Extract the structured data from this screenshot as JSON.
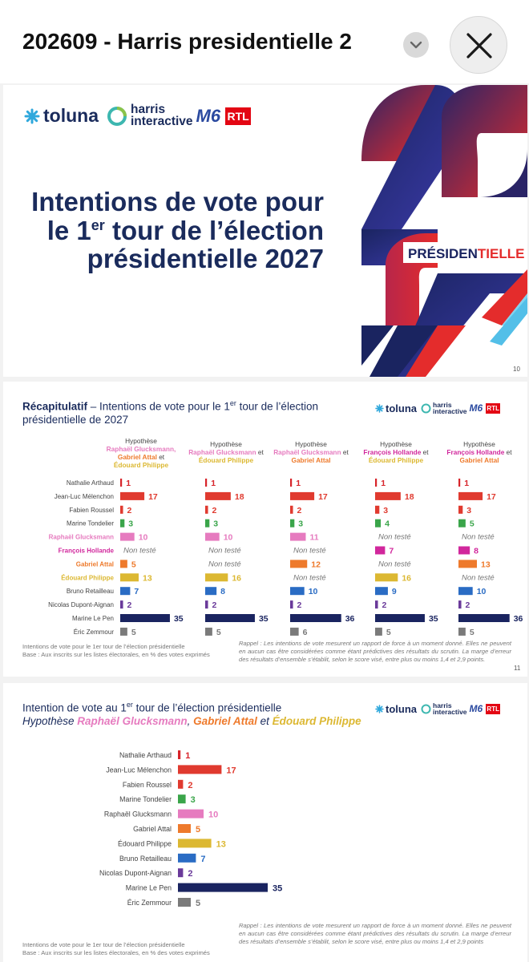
{
  "header": {
    "doc_title": "202609 - Harris presidentielle 2"
  },
  "brand": {
    "toluna": "toluna",
    "harris_1": "harris",
    "harris_2": "interactive",
    "m6": "M6",
    "rtl": "RTL"
  },
  "slide1": {
    "title_line1": "Intentions de vote pour",
    "title_l2_a": "le 1",
    "title_l2_sup": "er",
    "title_l2_b": " tour de l’élection",
    "title_line3": "présidentielle 2027",
    "deco_label_1": "PRÉSIDEN",
    "deco_label_2": "TIELLE",
    "page": "10"
  },
  "slide2": {
    "title_bold": "Récapitulatif",
    "title_a": " – Intentions de vote pour le 1",
    "title_sup": "er",
    "title_b": " tour de l’élection présidentielle de 2027",
    "footnote_1": "Intentions de vote pour le 1er tour de l’élection présidentielle",
    "footnote_2": "Base : Aux inscrits sur les listes électorales, en % des votes exprimés",
    "rappel": "Rappel : Les intentions de vote mesurent un rapport de force à un moment donné. Elles ne peuvent en aucun cas être considérées comme étant prédictives des résultats du scrutin. La marge d’erreur des résultats d’ensemble s’établit, selon le score visé, entre plus ou moins 1,4 et 2,9 points.",
    "page": "11"
  },
  "slide3": {
    "title_a": "Intention de vote au 1",
    "title_sup": "er",
    "title_b": " tour de l’élection présidentielle",
    "hyp_word": "Hypothèse ",
    "hyp_n1": "Raphaël Glucksmann",
    "hyp_sep": ", ",
    "hyp_n2": "Gabriel Attal",
    "hyp_et": " et ",
    "hyp_n3": "Édouard Philippe",
    "footnote_1": "Intentions de vote pour le 1er tour de l’élection présidentielle",
    "footnote_2": "Base : Aux inscrits sur les listes électorales, en % des votes exprimés",
    "rappel": "Rappel : Les intentions de vote mesurent un rapport de force à un moment donné. Elles ne peuvent en aucun cas être considérées comme étant prédictives des résultats du scrutin. La marge d’erreur des résultats d’ensemble s’établit, selon le score visé, entre plus ou moins 1,4 et 2,9 points"
  },
  "chart_data": [
    {
      "type": "bar",
      "orientation": "horizontal",
      "title": "Récapitulatif – Intentions de vote pour le 1er tour de l’élection présidentielle de 2027",
      "categories": [
        "Nathalie Arthaud",
        "Jean-Luc Mélenchon",
        "Fabien Roussel",
        "Marine Tondelier",
        "Raphaël Glucksmann",
        "François Hollande",
        "Gabriel Attal",
        "Édouard Philippe",
        "Bruno Retailleau",
        "Nicolas Dupont-Aignan",
        "Marine Le Pen",
        "Éric Zemmour"
      ],
      "category_colors": [
        "#d7242a",
        "#e03a2f",
        "#e03a2f",
        "#3aa54a",
        "#e67bbf",
        "#d1279c",
        "#ee7a2c",
        "#dcb832",
        "#2a6cc4",
        "#6a3a9a",
        "#1a2460",
        "#7a7a7a"
      ],
      "label_colors": [
        "#444444",
        "#444444",
        "#444444",
        "#444444",
        "#e67bbf",
        "#d1279c",
        "#ee7a2c",
        "#dcb832",
        "#444444",
        "#444444",
        "#444444",
        "#444444"
      ],
      "not_tested_label": "Non testé",
      "series": [
        {
          "hyp_word": "Hypothèse",
          "names": [
            {
              "text": "Raphaël Glucksmann,",
              "color": "#e67bbf"
            },
            {
              "text": "Gabriel Attal",
              "color": "#ee7a2c"
            },
            {
              "text": " et",
              "color": "#444444"
            },
            {
              "text": "Édouard Philippe",
              "color": "#dcb832"
            }
          ],
          "values": [
            1,
            17,
            2,
            3,
            10,
            null,
            5,
            13,
            7,
            2,
            35,
            5
          ]
        },
        {
          "hyp_word": "Hypothèse",
          "names": [
            {
              "text": "Raphaël Glucksmann",
              "color": "#e67bbf"
            },
            {
              "text": " et",
              "color": "#444444"
            },
            {
              "text": "Édouard Philippe",
              "color": "#dcb832"
            }
          ],
          "values": [
            1,
            18,
            2,
            3,
            10,
            null,
            null,
            16,
            8,
            2,
            35,
            5
          ]
        },
        {
          "hyp_word": "Hypothèse",
          "names": [
            {
              "text": "Raphaël Glucksmann",
              "color": "#e67bbf"
            },
            {
              "text": " et",
              "color": "#444444"
            },
            {
              "text": "Gabriel Attal",
              "color": "#ee7a2c"
            }
          ],
          "values": [
            1,
            17,
            2,
            3,
            11,
            null,
            12,
            null,
            10,
            2,
            36,
            6
          ]
        },
        {
          "hyp_word": "Hypothèse",
          "names": [
            {
              "text": "François Hollande",
              "color": "#d1279c"
            },
            {
              "text": " et",
              "color": "#444444"
            },
            {
              "text": "Édouard Philippe",
              "color": "#dcb832"
            }
          ],
          "values": [
            1,
            18,
            3,
            4,
            null,
            7,
            null,
            16,
            9,
            2,
            35,
            5
          ]
        },
        {
          "hyp_word": "Hypothèse",
          "names": [
            {
              "text": "François Hollande",
              "color": "#d1279c"
            },
            {
              "text": " et",
              "color": "#444444"
            },
            {
              "text": "Gabriel Attal",
              "color": "#ee7a2c"
            }
          ],
          "values": [
            1,
            17,
            3,
            5,
            null,
            8,
            13,
            null,
            10,
            2,
            36,
            5
          ]
        }
      ]
    },
    {
      "type": "bar",
      "orientation": "horizontal",
      "title": "Intention de vote au 1er tour de l’élection présidentielle",
      "subtitle": "Hypothèse Raphaël Glucksmann, Gabriel Attal et Édouard Philippe",
      "categories": [
        "Nathalie Arthaud",
        "Jean-Luc Mélenchon",
        "Fabien Roussel",
        "Marine Tondelier",
        "Raphaël Glucksmann",
        "Gabriel Attal",
        "Édouard Philippe",
        "Bruno Retailleau",
        "Nicolas Dupont-Aignan",
        "Marine Le Pen",
        "Éric Zemmour"
      ],
      "colors": [
        "#d7242a",
        "#e03a2f",
        "#e03a2f",
        "#3aa54a",
        "#e67bbf",
        "#ee7a2c",
        "#dcb832",
        "#2a6cc4",
        "#6a3a9a",
        "#1a2460",
        "#7a7a7a"
      ],
      "values": [
        1,
        17,
        2,
        3,
        10,
        5,
        13,
        7,
        2,
        35,
        5
      ]
    }
  ]
}
